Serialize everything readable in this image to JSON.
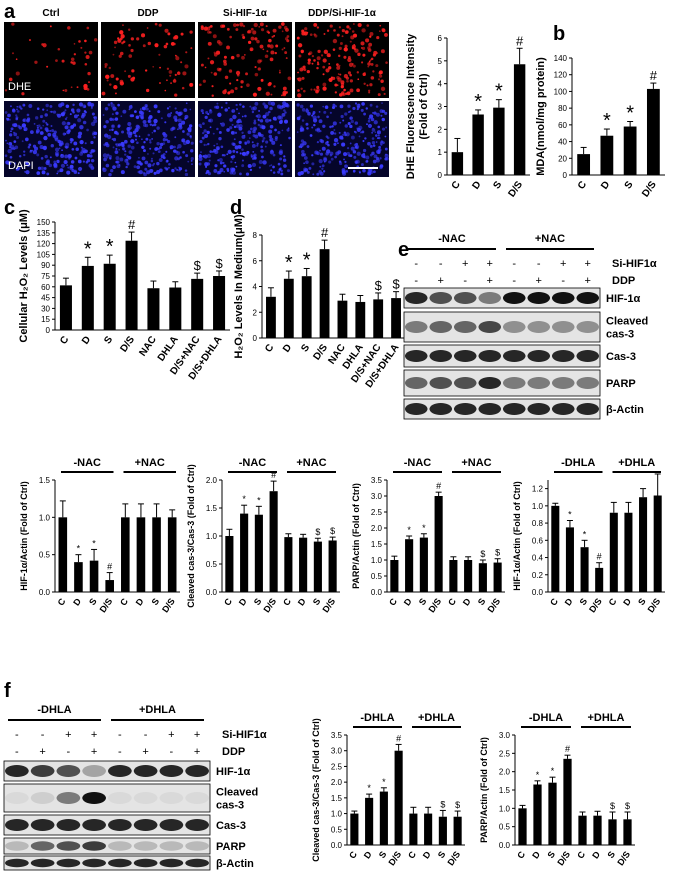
{
  "panel_letters": [
    "a",
    "b",
    "c",
    "d",
    "e",
    "f"
  ],
  "panel_a_images": {
    "columns": [
      "Ctrl",
      "DDP",
      "Si-HIF-1α",
      "DDP/Si-HIF-1α"
    ],
    "rows": [
      "DHE",
      "DAPI"
    ]
  },
  "blot_e": {
    "groups": [
      "-NAC",
      "+NAC"
    ],
    "treatments": [
      {
        "name": "Si-HIF1α",
        "signs": [
          "-",
          "-",
          "+",
          "+",
          "-",
          "-",
          "+",
          "+"
        ]
      },
      {
        "name": "DDP",
        "signs": [
          "-",
          "+",
          "-",
          "+",
          "-",
          "+",
          "-",
          "+"
        ]
      }
    ],
    "bands": [
      "HIF-1α",
      [
        "Cleaved",
        "cas-3"
      ],
      "Cas-3",
      "PARP",
      "β-Actin"
    ]
  },
  "blot_f": {
    "groups": [
      "-DHLA",
      "+DHLA"
    ],
    "treatments": [
      {
        "name": "Si-HIF1α",
        "signs": [
          "-",
          "-",
          "+",
          "+",
          "-",
          "-",
          "+",
          "+"
        ]
      },
      {
        "name": "DDP",
        "signs": [
          "-",
          "+",
          "-",
          "+",
          "-",
          "+",
          "-",
          "+"
        ]
      }
    ],
    "bands": [
      "HIF-1α",
      [
        "Cleaved",
        "cas-3"
      ],
      "Cas-3",
      "PARP",
      "β-Actin"
    ]
  },
  "chart_data": [
    {
      "type": "bar",
      "color": "#000000",
      "ylabel": [
        "DHE Fluorescence Intensity",
        "(Fold of Ctrl)"
      ],
      "categories": [
        "C",
        "D",
        "S",
        "D/S"
      ],
      "values": [
        1,
        2.65,
        2.95,
        4.85
      ],
      "errors": [
        0.6,
        0.2,
        0.35,
        0.7
      ],
      "marks": [
        null,
        "*",
        "*",
        "#"
      ],
      "ylim": [
        0,
        6
      ],
      "yticks": [
        0,
        1,
        2,
        3,
        4,
        5,
        6
      ]
    },
    {
      "type": "bar",
      "color": "#000000",
      "ylabel": "MDA(nmol/mg protein)",
      "categories": [
        "C",
        "D",
        "S",
        "D/S"
      ],
      "values": [
        25,
        47,
        58,
        103
      ],
      "errors": [
        8,
        8,
        6,
        7
      ],
      "marks": [
        null,
        "*",
        "*",
        "#"
      ],
      "ylim": [
        0,
        140
      ],
      "yticks": [
        0,
        20,
        40,
        60,
        80,
        100,
        120,
        140
      ]
    },
    {
      "type": "bar",
      "color": "#000000",
      "ylabel": "Cellular H₂O₂ Levels (μM)",
      "categories": [
        "C",
        "D",
        "S",
        "D/S",
        "NAC",
        "DHLA",
        "D/S+NAC",
        "D/S+DHLA"
      ],
      "values": [
        62,
        89,
        92,
        124,
        58,
        59,
        71,
        75
      ],
      "errors": [
        10,
        12,
        12,
        12,
        10,
        8,
        8,
        7
      ],
      "marks": [
        null,
        "*",
        "*",
        "#",
        null,
        null,
        "$",
        "$"
      ],
      "ylim": [
        0,
        150
      ],
      "yticks": [
        0,
        15,
        30,
        45,
        60,
        75,
        90,
        105,
        120,
        135,
        150
      ]
    },
    {
      "type": "bar",
      "color": "#000000",
      "ylabel": "H₂O₂ Levels In Medium(μM)",
      "categories": [
        "C",
        "D",
        "S",
        "D/S",
        "NAC",
        "DHLA",
        "D/S+NAC",
        "D/S+DHLA"
      ],
      "values": [
        3.2,
        4.6,
        4.8,
        6.9,
        2.9,
        2.8,
        3.0,
        3.1
      ],
      "errors": [
        0.7,
        0.6,
        0.6,
        0.7,
        0.5,
        0.5,
        0.5,
        0.5
      ],
      "marks": [
        null,
        "*",
        "*",
        "#",
        null,
        null,
        "$",
        "$"
      ],
      "ylim": [
        0,
        8
      ],
      "yticks": [
        0,
        2,
        4,
        6,
        8
      ]
    },
    {
      "type": "bar",
      "color": "#000000",
      "ylabel": "HIF-1α/Actin (Fold of Ctrl)",
      "groups": [
        "-NAC",
        "+NAC"
      ],
      "categories": [
        "C",
        "D",
        "S",
        "D/S",
        "C",
        "D",
        "S",
        "D/S"
      ],
      "values": [
        1.0,
        0.4,
        0.42,
        0.16,
        1.0,
        1.0,
        1.0,
        1.0
      ],
      "errors": [
        0.22,
        0.1,
        0.15,
        0.1,
        0.18,
        0.18,
        0.18,
        0.1
      ],
      "marks": [
        null,
        "*",
        "*",
        "#",
        null,
        null,
        null,
        null
      ],
      "ylim": [
        0,
        1.5
      ],
      "yticks": [
        {
          "value": 0,
          "label": "0.0"
        },
        0.5,
        {
          "value": 1,
          "label": "1.0"
        },
        1.5
      ]
    },
    {
      "type": "bar",
      "color": "#000000",
      "ylabel": "Cleaved cas-3/Cas-3 (Fold of Ctrl)",
      "groups": [
        "-NAC",
        "+NAC"
      ],
      "categories": [
        "C",
        "D",
        "S",
        "D/S",
        "C",
        "D",
        "S",
        "D/S"
      ],
      "values": [
        1.0,
        1.4,
        1.38,
        1.8,
        0.98,
        0.97,
        0.9,
        0.92
      ],
      "errors": [
        0.12,
        0.15,
        0.15,
        0.18,
        0.06,
        0.06,
        0.06,
        0.06
      ],
      "marks": [
        null,
        "*",
        "*",
        "#",
        null,
        null,
        "$",
        "$"
      ],
      "ylim": [
        0,
        2
      ],
      "yticks": [
        {
          "value": 0,
          "label": "0.0"
        },
        0.5,
        {
          "value": 1,
          "label": "1.0"
        },
        1.5,
        {
          "value": 2,
          "label": "2.0"
        }
      ]
    },
    {
      "type": "bar",
      "color": "#000000",
      "ylabel": "PARP/Actin (Fold of Ctrl)",
      "groups": [
        "-NAC",
        "+NAC"
      ],
      "categories": [
        "C",
        "D",
        "S",
        "D/S",
        "C",
        "D",
        "S",
        "D/S"
      ],
      "values": [
        1.0,
        1.65,
        1.7,
        3.0,
        1.0,
        1.0,
        0.9,
        0.92
      ],
      "errors": [
        0.12,
        0.1,
        0.12,
        0.12,
        0.1,
        0.1,
        0.1,
        0.12
      ],
      "marks": [
        null,
        "*",
        "*",
        "#",
        null,
        null,
        "$",
        "$"
      ],
      "ylim": [
        0,
        3.5
      ],
      "yticks": [
        {
          "value": 0,
          "label": "0.0"
        },
        0.5,
        {
          "value": 1,
          "label": "1.0"
        },
        1.5,
        {
          "value": 2,
          "label": "2.0"
        },
        2.5,
        {
          "value": 3,
          "label": "3.0"
        },
        3.5
      ]
    },
    {
      "type": "bar",
      "color": "#000000",
      "ylabel": "HIF-1α/Actin (Fold of Ctrl)",
      "groups": [
        "-DHLA",
        "+DHLA"
      ],
      "categories": [
        "C",
        "D",
        "S",
        "D/S",
        "C",
        "D",
        "S",
        "D/S"
      ],
      "values": [
        1.0,
        0.75,
        0.52,
        0.28,
        0.92,
        0.92,
        1.1,
        1.12
      ],
      "errors": [
        0.03,
        0.08,
        0.08,
        0.06,
        0.12,
        0.12,
        0.1,
        0.25
      ],
      "marks": [
        null,
        "*",
        "*",
        "#",
        null,
        null,
        null,
        null
      ],
      "ylim": [
        0,
        1.3
      ],
      "yticks": [
        {
          "value": 0,
          "label": "0.0"
        },
        0.2,
        0.4,
        0.6,
        0.8,
        {
          "value": 1,
          "label": "1.0"
        },
        1.2
      ]
    },
    {
      "type": "bar",
      "color": "#000000",
      "ylabel": "Cleaved cas-3/Cas-3 (Fold of Ctrl)",
      "groups": [
        "-DHLA",
        "+DHLA"
      ],
      "categories": [
        "C",
        "D",
        "S",
        "D/S",
        "C",
        "D",
        "S",
        "D/S"
      ],
      "values": [
        1.0,
        1.5,
        1.7,
        3.0,
        1.0,
        1.0,
        0.9,
        0.9
      ],
      "errors": [
        0.08,
        0.12,
        0.12,
        0.2,
        0.2,
        0.2,
        0.2,
        0.18
      ],
      "marks": [
        null,
        "*",
        "*",
        "#",
        null,
        null,
        "$",
        "$"
      ],
      "ylim": [
        0,
        3.5
      ],
      "yticks": [
        {
          "value": 0,
          "label": "0.0"
        },
        0.5,
        {
          "value": 1,
          "label": "1.0"
        },
        1.5,
        {
          "value": 2,
          "label": "2.0"
        },
        2.5,
        {
          "value": 3,
          "label": "3.0"
        },
        3.5
      ]
    },
    {
      "type": "bar",
      "color": "#000000",
      "ylabel": "PARP/Actin (Fold of Ctrl)",
      "groups": [
        "-DHLA",
        "+DHLA"
      ],
      "categories": [
        "C",
        "D",
        "S",
        "D/S",
        "C",
        "D",
        "S",
        "D/S"
      ],
      "values": [
        1.0,
        1.65,
        1.7,
        2.35,
        0.8,
        0.8,
        0.7,
        0.7
      ],
      "errors": [
        0.08,
        0.1,
        0.15,
        0.1,
        0.1,
        0.12,
        0.2,
        0.2
      ],
      "marks": [
        null,
        "*",
        "*",
        "#",
        null,
        null,
        "$",
        "$"
      ],
      "ylim": [
        0,
        3
      ],
      "yticks": [
        {
          "value": 0,
          "label": "0.0"
        },
        0.5,
        {
          "value": 1,
          "label": "1.0"
        },
        1.5,
        {
          "value": 2,
          "label": "2.0"
        },
        2.5,
        {
          "value": 3,
          "label": "3.0"
        }
      ]
    }
  ]
}
